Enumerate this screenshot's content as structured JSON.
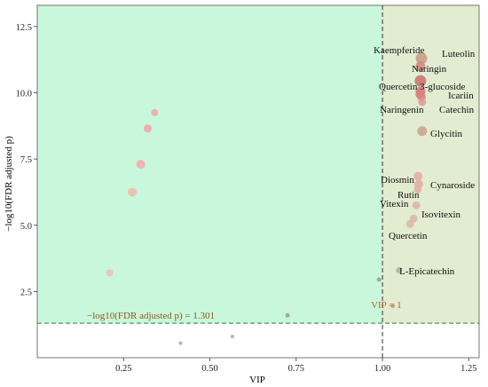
{
  "chart_data": {
    "type": "scatter",
    "title": "",
    "xlabel": "VIP",
    "ylabel": "−log10(FDR adjusted p)",
    "xlim": [
      0.0,
      1.28
    ],
    "ylim": [
      0.0,
      13.3
    ],
    "xticks": [
      0.25,
      0.5,
      0.75,
      1.0,
      1.25
    ],
    "xtick_labels": [
      "0.25",
      "0.50",
      "0.75",
      "1.00",
      "1.25"
    ],
    "yticks": [
      2.5,
      5.0,
      7.5,
      10.0,
      12.5
    ],
    "ytick_labels": [
      "2.5",
      "5.0",
      "7.5",
      "10.0",
      "12.5"
    ],
    "grid": false,
    "legend": "none",
    "thresholds": {
      "y": 1.301,
      "y_label": "−log10(FDR adjusted p) = 1.301",
      "x": 1.0,
      "x_label": "VIP = 1"
    },
    "colors": {
      "green_region": "#c9f7dc",
      "olive_region": "#e2ecd0",
      "threshold_line": "#2f7a4f",
      "vip_line": "#333333",
      "y_threshold_text": "#8a5a1a",
      "vip_text": "#b5651d"
    },
    "labeled_points": [
      {
        "name": "Kaempferide",
        "x": 1.113,
        "y": 11.3,
        "size": 6.5,
        "color": "#c79a86"
      },
      {
        "name": "Luteolin",
        "x": 1.11,
        "y": 11.0,
        "size": 5.5,
        "color": "#d08a80"
      },
      {
        "name": "Naringin",
        "x": 1.11,
        "y": 10.45,
        "size": 6.5,
        "color": "#c8706c"
      },
      {
        "name": "Quercetin 3-glucoside",
        "x": 1.11,
        "y": 10.05,
        "size": 5.5,
        "color": "#d47a7a"
      },
      {
        "name": "Icariin",
        "x": 1.113,
        "y": 9.85,
        "size": 5,
        "color": "#d88a86"
      },
      {
        "name": "Catechin",
        "x": 1.115,
        "y": 9.65,
        "size": 4.5,
        "color": "#dc9a94"
      },
      {
        "name": "Naringenin",
        "x": 1.108,
        "y": 9.95,
        "size": 5,
        "color": "#d6807e"
      },
      {
        "name": "Glycitin",
        "x": 1.115,
        "y": 8.55,
        "size": 5.5,
        "color": "#c9a289"
      },
      {
        "name": "Diosmin",
        "x": 1.103,
        "y": 6.85,
        "size": 5,
        "color": "#e7a8a2"
      },
      {
        "name": "Cynaroside",
        "x": 1.105,
        "y": 6.55,
        "size": 5,
        "color": "#e3aaa2"
      },
      {
        "name": "Rutin",
        "x": 1.102,
        "y": 6.35,
        "size": 4.5,
        "color": "#e2aea4"
      },
      {
        "name": "Vitexin",
        "x": 1.098,
        "y": 5.75,
        "size": 4.5,
        "color": "#ddb2a4"
      },
      {
        "name": "Isovitexin",
        "x": 1.09,
        "y": 5.25,
        "size": 4.5,
        "color": "#dcb6a6"
      },
      {
        "name": "Quercetin",
        "x": 1.08,
        "y": 5.05,
        "size": 4.5,
        "color": "#dcb8a6"
      },
      {
        "name": "L-Epicatechin",
        "x": 1.048,
        "y": 3.3,
        "size": 3.5,
        "color": "#b2b2a2"
      }
    ],
    "unlabeled_points": [
      {
        "x": 0.34,
        "y": 9.25,
        "size": 4,
        "color": "#f4a6a6"
      },
      {
        "x": 0.32,
        "y": 8.65,
        "size": 4.5,
        "color": "#f2a2a2"
      },
      {
        "x": 0.3,
        "y": 7.3,
        "size": 5,
        "color": "#f6a8a8"
      },
      {
        "x": 0.275,
        "y": 6.25,
        "size": 5,
        "color": "#f4b6aa"
      },
      {
        "x": 0.21,
        "y": 3.2,
        "size": 4,
        "color": "#f4bcb0"
      },
      {
        "x": 0.99,
        "y": 2.95,
        "size": 2.5,
        "color": "#9a9a9a"
      },
      {
        "x": 1.03,
        "y": 1.95,
        "size": 2.5,
        "color": "#caa27a"
      },
      {
        "x": 0.725,
        "y": 1.6,
        "size": 2.5,
        "color": "#9a9a9a"
      },
      {
        "x": 0.565,
        "y": 0.8,
        "size": 2,
        "color": "#a8a8a8"
      },
      {
        "x": 0.415,
        "y": 0.55,
        "size": 2,
        "color": "#a8a8a8"
      }
    ]
  }
}
